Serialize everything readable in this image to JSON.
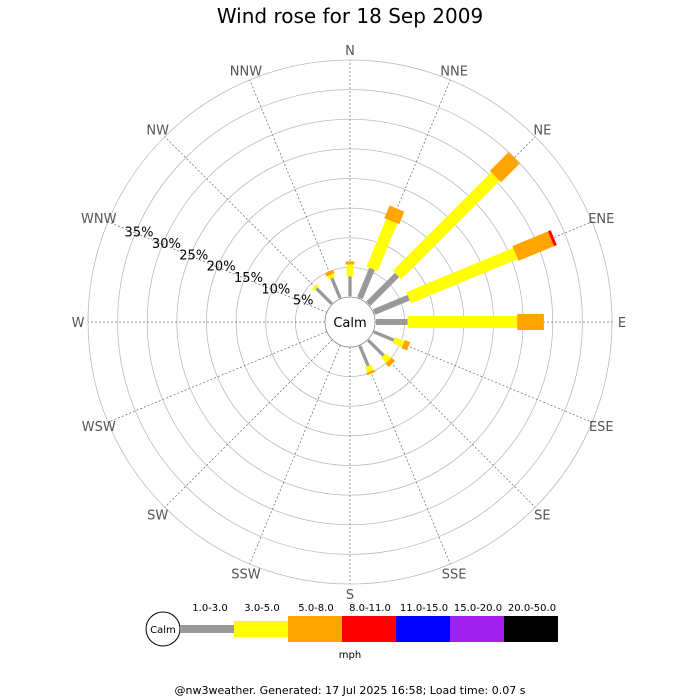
{
  "chart_data": {
    "type": "wind-rose",
    "title": "Wind rose for 18 Sep 2009",
    "directions": [
      "N",
      "NNE",
      "NE",
      "ENE",
      "E",
      "ESE",
      "SE",
      "SSE",
      "S",
      "SSW",
      "SW",
      "WSW",
      "W",
      "WNW",
      "NW",
      "NNW"
    ],
    "radial_ticks": [
      "5%",
      "10%",
      "15%",
      "20%",
      "25%",
      "30%",
      "35%"
    ],
    "radial_max_percent": 40,
    "calm_label": "Calm",
    "speed_bins": [
      {
        "label": "1.0-3.0",
        "color": "#999999"
      },
      {
        "label": "3.0-5.0",
        "color": "#ffff00"
      },
      {
        "label": "5.0-8.0",
        "color": "#ffa500"
      },
      {
        "label": "8.0-11.0",
        "color": "#ff0000"
      },
      {
        "label": "11.0-15.0",
        "color": "#0000ff"
      },
      {
        "label": "15.0-20.0",
        "color": "#a020f0"
      },
      {
        "label": "20.0-50.0",
        "color": "#000000"
      }
    ],
    "units": "mph",
    "series": [
      {
        "dir": "N",
        "cumulative": [
          3.5,
          5.5,
          6.0
        ]
      },
      {
        "dir": "NNE",
        "cumulative": [
          5.5,
          14.2,
          16.5
        ]
      },
      {
        "dir": "NE",
        "cumulative": [
          7.0,
          30.5,
          35.0
        ]
      },
      {
        "dir": "ENE",
        "cumulative": [
          6.5,
          26.0,
          32.5,
          33.0
        ]
      },
      {
        "dir": "E",
        "cumulative": [
          5.5,
          24.0,
          28.5
        ]
      },
      {
        "dir": "ESE",
        "cumulative": [
          3.8,
          5.5,
          6.5
        ]
      },
      {
        "dir": "SE",
        "cumulative": [
          3.8,
          5.0,
          5.8
        ]
      },
      {
        "dir": "SSE",
        "cumulative": [
          3.8,
          4.8,
          5.2
        ]
      },
      {
        "dir": "NW",
        "cumulative": [
          3.8,
          4.3
        ]
      },
      {
        "dir": "NNW",
        "cumulative": [
          3.8,
          4.4,
          5.0
        ]
      }
    ]
  },
  "footer": "@nw3weather. Generated: 17 Jul 2025 16:58; Load time: 0.07 s"
}
